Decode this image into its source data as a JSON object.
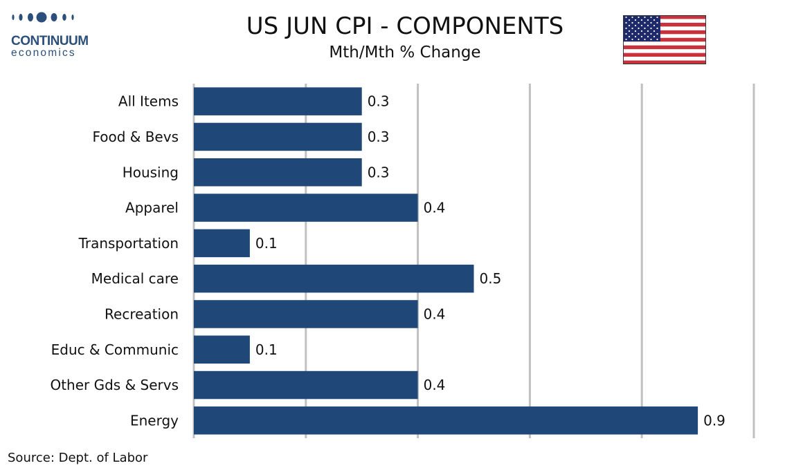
{
  "logo": {
    "name_line1": "CONTINUUM",
    "name_line2": "economics"
  },
  "flag_icon": "us-flag-icon",
  "source": "Source: Dept. of Labor",
  "colors": {
    "bar": "#1f4878",
    "grid": "#c0c0c0",
    "logo": "#2b4f7a"
  },
  "chart_data": {
    "type": "bar",
    "orientation": "horizontal",
    "title": "US JUN CPI - COMPONENTS",
    "subtitle": "Mth/Mth % Change",
    "categories": [
      "All Items",
      "Food & Bevs",
      "Housing",
      "Apparel ",
      "Transportation",
      "Medical care",
      "Recreation",
      "Educ & Communic",
      "Other Gds & Servs",
      "Energy"
    ],
    "values": [
      0.3,
      0.3,
      0.3,
      0.4,
      0.1,
      0.5,
      0.4,
      0.1,
      0.4,
      0.9
    ],
    "value_labels": [
      "0.3",
      "0.3",
      "0.3",
      "0.4",
      "0.1",
      "0.5",
      "0.4",
      "0.1",
      "0.4",
      "0.9"
    ],
    "xlim": [
      0,
      1.0
    ],
    "x_gridlines": [
      0.2,
      0.4,
      0.6,
      0.8,
      1.0
    ],
    "grid": true,
    "legend": "none",
    "xlabel": "",
    "ylabel": ""
  }
}
